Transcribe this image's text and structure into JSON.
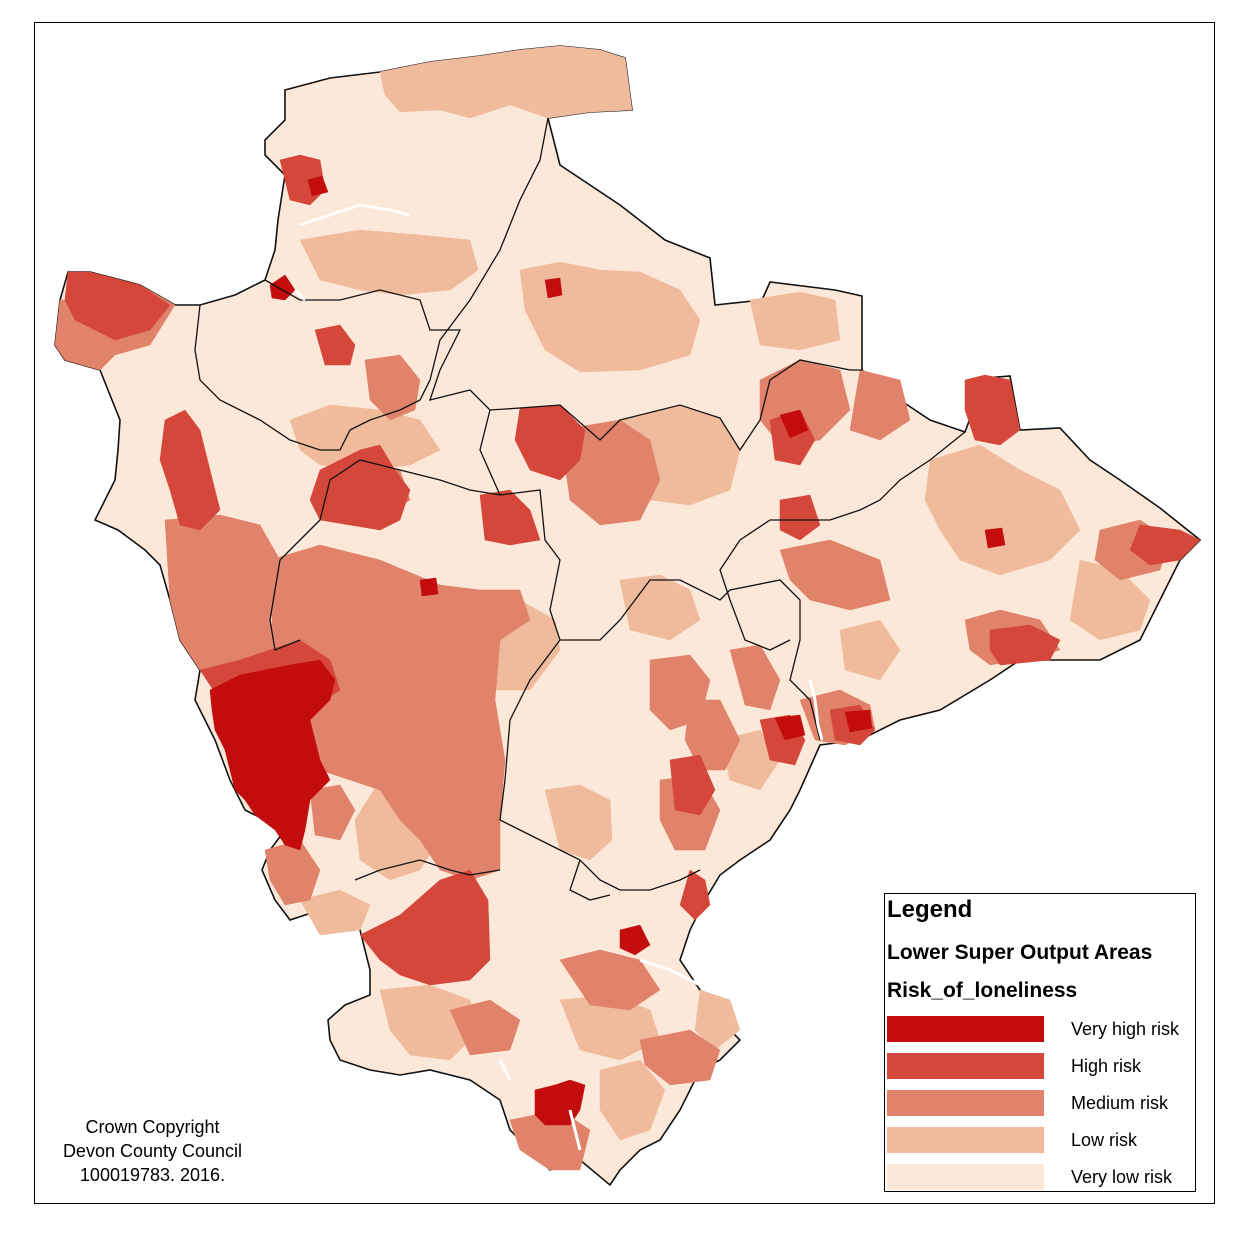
{
  "legend": {
    "title": "Legend",
    "layer": "Lower Super Output Areas",
    "field": "Risk_of_loneliness",
    "classes": [
      {
        "label": "Very high risk",
        "color": "#c30d0d"
      },
      {
        "label": "High risk",
        "color": "#d4473a"
      },
      {
        "label": "Medium risk",
        "color": "#e0836a"
      },
      {
        "label": "Low risk",
        "color": "#f0bb9d"
      },
      {
        "label": "Very low risk",
        "color": "#fce8d9"
      }
    ]
  },
  "copyright": {
    "line1": "Crown Copyright",
    "line2": "Devon County Council",
    "line3": "100019783.  2016."
  }
}
